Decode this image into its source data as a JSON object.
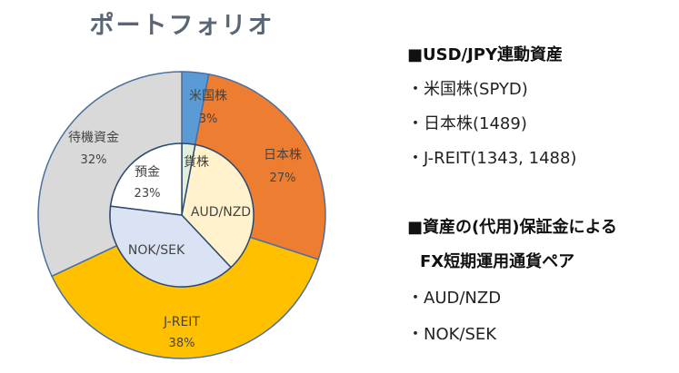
{
  "title": "ポートフォリオ",
  "chart_data": {
    "type": "pie",
    "rings": [
      {
        "name": "outer",
        "slices": [
          {
            "label": "米国株",
            "value": 3,
            "value_text": "3%",
            "color": "#5b9bd5"
          },
          {
            "label": "日本株",
            "value": 27,
            "value_text": "27%",
            "color": "#ed7d31"
          },
          {
            "label": "J-REIT",
            "value": 38,
            "value_text": "38%",
            "color": "#ffc000"
          },
          {
            "label": "待機資金",
            "value": 32,
            "value_text": "32%",
            "color": "#d9d9d9"
          }
        ]
      },
      {
        "name": "inner",
        "slices": [
          {
            "label": "貨株",
            "value": 3,
            "value_text": "",
            "color": "#e2efda"
          },
          {
            "label": "AUD/NZD",
            "value": 35,
            "value_text": "",
            "color": "#fff2cc"
          },
          {
            "label": "NOK/SEK",
            "value": 39,
            "value_text": "",
            "color": "#dae3f3"
          },
          {
            "label": "預金",
            "value": 23,
            "value_text": "23%",
            "color": "#ffffff"
          }
        ]
      }
    ]
  },
  "legend": {
    "group1": {
      "title": "■USD/JPY連動資産",
      "items": [
        "・米国株(SPYD)",
        "・日本株(1489)",
        "・J-REIT(1343, 1488)"
      ]
    },
    "group2": {
      "title": "■資産の(代用)保証金による",
      "title2": "FX短期運用通貨ペア",
      "items": [
        "・AUD/NZD",
        "・NOK/SEK"
      ]
    }
  }
}
